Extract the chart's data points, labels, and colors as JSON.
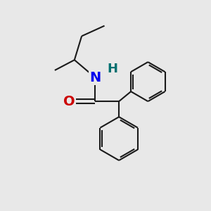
{
  "bg_color": "#e8e8e8",
  "bond_color": "#1a1a1a",
  "N_color": "#0000ee",
  "H_color": "#007070",
  "O_color": "#cc0000",
  "bond_width": 1.5,
  "font_size_N": 14,
  "font_size_H": 13,
  "font_size_O": 14,
  "figsize": [
    3.0,
    3.0
  ],
  "dpi": 100,
  "xlim": [
    0,
    10
  ],
  "ylim": [
    0,
    10
  ]
}
